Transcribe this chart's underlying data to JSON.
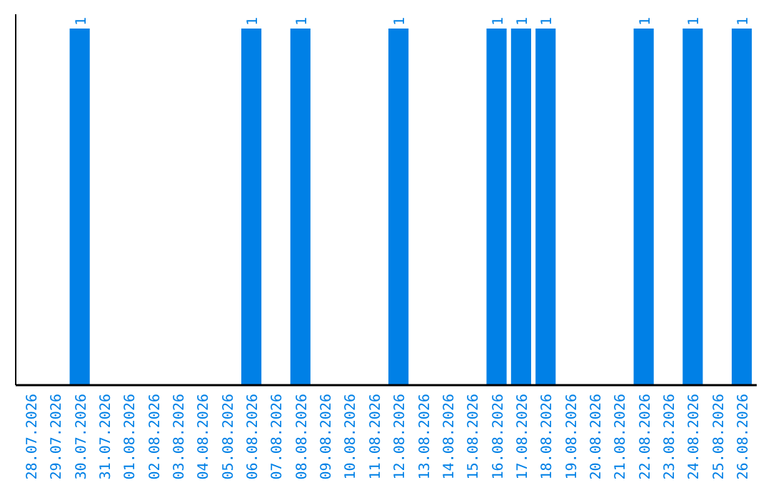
{
  "chart_data": {
    "type": "bar",
    "categories": [
      "28.07.2026",
      "29.07.2026",
      "30.07.2026",
      "31.07.2026",
      "01.08.2026",
      "02.08.2026",
      "03.08.2026",
      "04.08.2026",
      "05.08.2026",
      "06.08.2026",
      "07.08.2026",
      "08.08.2026",
      "09.08.2026",
      "10.08.2026",
      "11.08.2026",
      "12.08.2026",
      "13.08.2026",
      "14.08.2026",
      "15.08.2026",
      "16.08.2026",
      "17.08.2026",
      "18.08.2026",
      "19.08.2026",
      "20.08.2026",
      "21.08.2026",
      "22.08.2026",
      "23.08.2026",
      "24.08.2026",
      "25.08.2026",
      "26.08.2026"
    ],
    "values": [
      0,
      0,
      1,
      0,
      0,
      0,
      0,
      0,
      0,
      1,
      0,
      1,
      0,
      0,
      0,
      1,
      0,
      0,
      0,
      1,
      1,
      1,
      0,
      0,
      0,
      1,
      0,
      1,
      0,
      1
    ],
    "value_labels": [
      null,
      null,
      "1",
      null,
      null,
      null,
      null,
      null,
      null,
      "1",
      null,
      "1",
      null,
      null,
      null,
      "1",
      null,
      null,
      null,
      "1",
      "1",
      "1",
      null,
      null,
      null,
      "1",
      null,
      "1",
      null,
      "1"
    ],
    "color": "#0080e6"
  }
}
